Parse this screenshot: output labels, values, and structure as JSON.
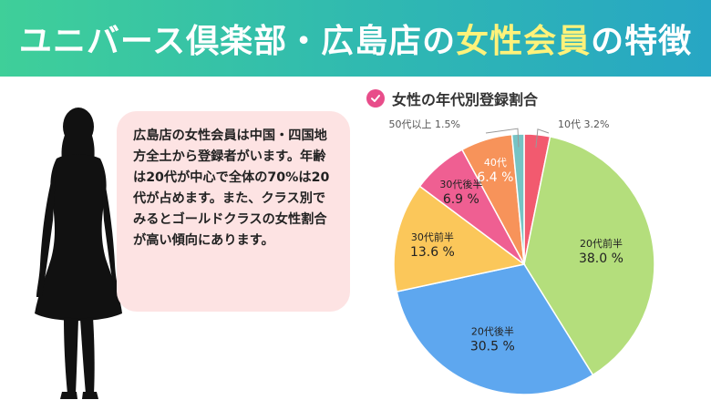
{
  "header": {
    "title_pre": "ユニバース倶楽部・広島店の",
    "title_highlight": "女性会員",
    "title_post": "の特徴"
  },
  "description": "広島店の女性会員は中国・四国地方全土から登録者がいます。年齢は20代が中心で全体の70%は20代が占めます。また、クラス別でみるとゴールドクラスの女性割合が高い傾向にあります。",
  "chart_data": {
    "type": "pie",
    "title": "女性の年代別登録割合",
    "unit": "%",
    "slices": [
      {
        "label": "10代",
        "value": 3.2,
        "color": "#f25a6f"
      },
      {
        "label": "20代前半",
        "value": 38.0,
        "color": "#b4de7c"
      },
      {
        "label": "20代後半",
        "value": 30.5,
        "color": "#5ea7ef"
      },
      {
        "label": "30代前半",
        "value": 13.6,
        "color": "#fbc75a"
      },
      {
        "label": "30代後半",
        "value": 6.9,
        "color": "#ef5f92"
      },
      {
        "label": "40代",
        "value": 6.4,
        "color": "#f7935a"
      },
      {
        "label": "50代以上",
        "value": 1.5,
        "color": "#76c3c4"
      }
    ]
  }
}
